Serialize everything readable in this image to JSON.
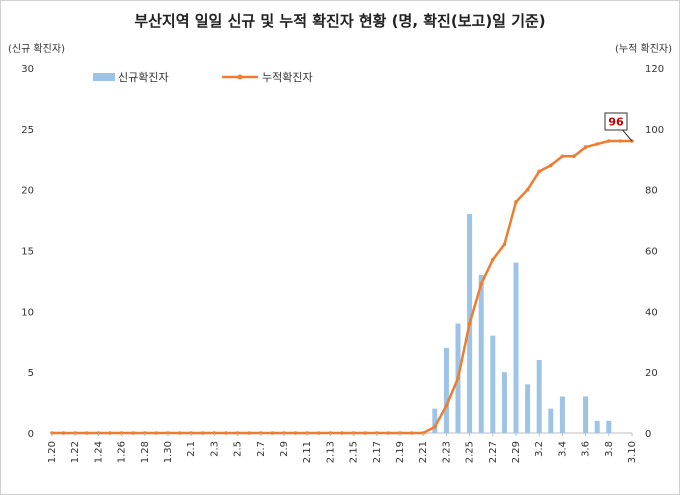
{
  "chart_data": {
    "type": "bar+line",
    "title": "부산지역 일일 신규 및 누적 확진자 현황 (명, 확진(보고)일 기준)",
    "ylabel_left": "(신규 확진자)",
    "ylabel_right": "(누적 확진자)",
    "ylim_left": [
      0,
      30
    ],
    "ylim_right": [
      0,
      120
    ],
    "yticks_left": [
      "0",
      "5",
      "10",
      "15",
      "20",
      "25",
      "30"
    ],
    "yticks_right": [
      "0",
      "20",
      "40",
      "60",
      "80",
      "100",
      "120"
    ],
    "legend_position": "top-left",
    "categories": [
      "1.20",
      "1.21",
      "1.22",
      "1.23",
      "1.24",
      "1.25",
      "1.26",
      "1.27",
      "1.28",
      "1.29",
      "1.30",
      "1.31",
      "2.1",
      "2.2",
      "2.3",
      "2.4",
      "2.5",
      "2.6",
      "2.7",
      "2.8",
      "2.9",
      "2.10",
      "2.11",
      "2.12",
      "2.13",
      "2.14",
      "2.15",
      "2.16",
      "2.17",
      "2.18",
      "2.19",
      "2.20",
      "2.21",
      "2.22",
      "2.23",
      "2.24",
      "2.25",
      "2.26",
      "2.27",
      "2.28",
      "2.29",
      "3.1",
      "3.2",
      "3.3",
      "3.4",
      "3.5",
      "3.6",
      "3.7",
      "3.8",
      "3.9",
      "3.10"
    ],
    "x_tick_labels": [
      "1.20",
      "1.22",
      "1.24",
      "1.26",
      "1.28",
      "1.30",
      "2.1",
      "2.3",
      "2.5",
      "2.7",
      "2.9",
      "2.11",
      "2.13",
      "2.15",
      "2.17",
      "2.19",
      "2.21",
      "2.23",
      "2.25",
      "2.27",
      "2.29",
      "3.2",
      "3.4",
      "3.6",
      "3.8",
      "3.10"
    ],
    "series": [
      {
        "name": "신규확진자",
        "type": "bar",
        "axis": "left",
        "color": "#9dc3e6",
        "values": [
          0,
          0,
          0,
          0,
          0,
          0,
          0,
          0,
          0,
          0,
          0,
          0,
          0,
          0,
          0,
          0,
          0,
          0,
          0,
          0,
          0,
          0,
          0,
          0,
          0,
          0,
          0,
          0,
          0,
          0,
          0,
          0,
          0,
          2,
          7,
          9,
          18,
          13,
          8,
          5,
          14,
          4,
          6,
          2,
          3,
          0,
          3,
          1,
          1,
          0,
          0
        ]
      },
      {
        "name": "누적확진자",
        "type": "line",
        "axis": "right",
        "color": "#ed7d31",
        "values": [
          0,
          0,
          0,
          0,
          0,
          0,
          0,
          0,
          0,
          0,
          0,
          0,
          0,
          0,
          0,
          0,
          0,
          0,
          0,
          0,
          0,
          0,
          0,
          0,
          0,
          0,
          0,
          0,
          0,
          0,
          0,
          0,
          0,
          2,
          9,
          18,
          36,
          49,
          57,
          62,
          76,
          80,
          86,
          88,
          91,
          91,
          94,
          95,
          96,
          96,
          96
        ]
      }
    ],
    "annotation": {
      "label": "96",
      "index": 50
    }
  }
}
